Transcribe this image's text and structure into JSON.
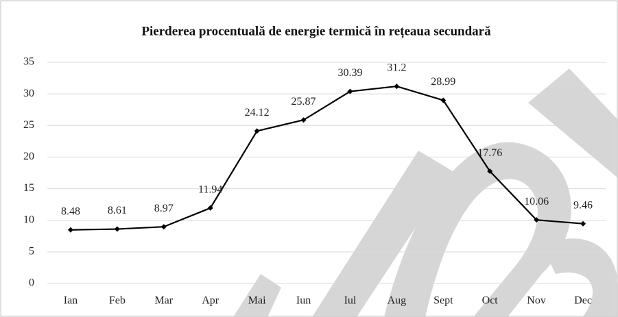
{
  "chart_data": {
    "type": "line",
    "title": "Pierderea procentuală de energie termică în rețeaua secundară",
    "categories": [
      "Ian",
      "Feb",
      "Mar",
      "Apr",
      "Mai",
      "Iun",
      "Iul",
      "Aug",
      "Sept",
      "Oct",
      "Nov",
      "Dec"
    ],
    "values": [
      8.48,
      8.61,
      8.97,
      11.94,
      24.12,
      25.87,
      30.39,
      31.2,
      28.99,
      17.76,
      10.06,
      9.46
    ],
    "color": "#000000",
    "ylim": [
      0,
      35
    ],
    "yticks": [
      0,
      5,
      10,
      15,
      20,
      25,
      30,
      35
    ],
    "grid": true
  }
}
